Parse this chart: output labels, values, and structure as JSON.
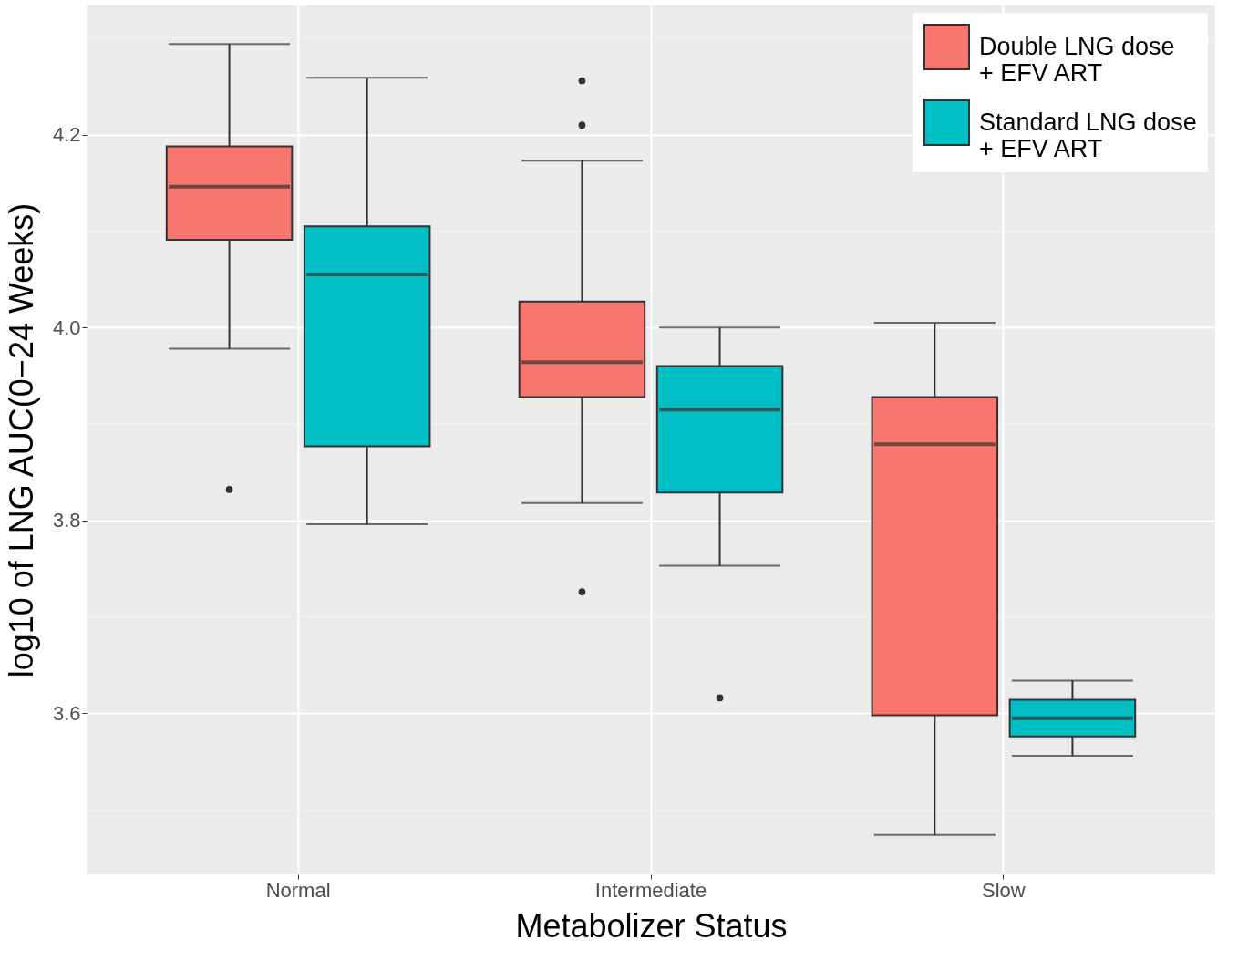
{
  "chart_data": {
    "type": "box",
    "xlabel": "Metabolizer Status",
    "ylabel": "log10 of LNG AUC(0−24 Weeks)",
    "categories": [
      "Normal",
      "Intermediate",
      "Slow"
    ],
    "ylim": [
      3.433,
      4.334
    ],
    "yticks": [
      {
        "value": 3.5,
        "label": null
      },
      {
        "value": 3.6,
        "label": "3.6"
      },
      {
        "value": 3.7,
        "label": null
      },
      {
        "value": 3.8,
        "label": "3.8"
      },
      {
        "value": 3.9,
        "label": null
      },
      {
        "value": 4.0,
        "label": "4.0"
      },
      {
        "value": 4.1,
        "label": null
      },
      {
        "value": 4.2,
        "label": "4.2"
      },
      {
        "value": 4.3,
        "label": null
      }
    ],
    "grid": true,
    "legend": "top right",
    "series": [
      {
        "name": "Double LNG dose\n + EFV ART",
        "color": "#f8766d",
        "boxes": [
          {
            "low": 3.978,
            "q1": 4.091,
            "median": 4.146,
            "q3": 4.188,
            "high": 4.294,
            "outliers": [
              3.832
            ]
          },
          {
            "low": 3.818,
            "q1": 3.928,
            "median": 3.964,
            "q3": 4.027,
            "high": 4.173,
            "outliers": [
              4.256,
              4.21,
              3.726
            ]
          },
          {
            "low": 3.474,
            "q1": 3.598,
            "median": 3.879,
            "q3": 3.928,
            "high": 4.005
          }
        ]
      },
      {
        "name": "Standard LNG dose\n + EFV ART",
        "color": "#00bfc4",
        "boxes": [
          {
            "low": 3.796,
            "q1": 3.877,
            "median": 4.055,
            "q3": 4.105,
            "high": 4.259
          },
          {
            "low": 3.753,
            "q1": 3.829,
            "median": 3.915,
            "q3": 3.96,
            "high": 4.0,
            "outliers": [
              3.616
            ]
          },
          {
            "low": 3.556,
            "q1": 3.576,
            "median": 3.595,
            "q3": 3.614,
            "high": 3.634
          }
        ]
      }
    ]
  }
}
